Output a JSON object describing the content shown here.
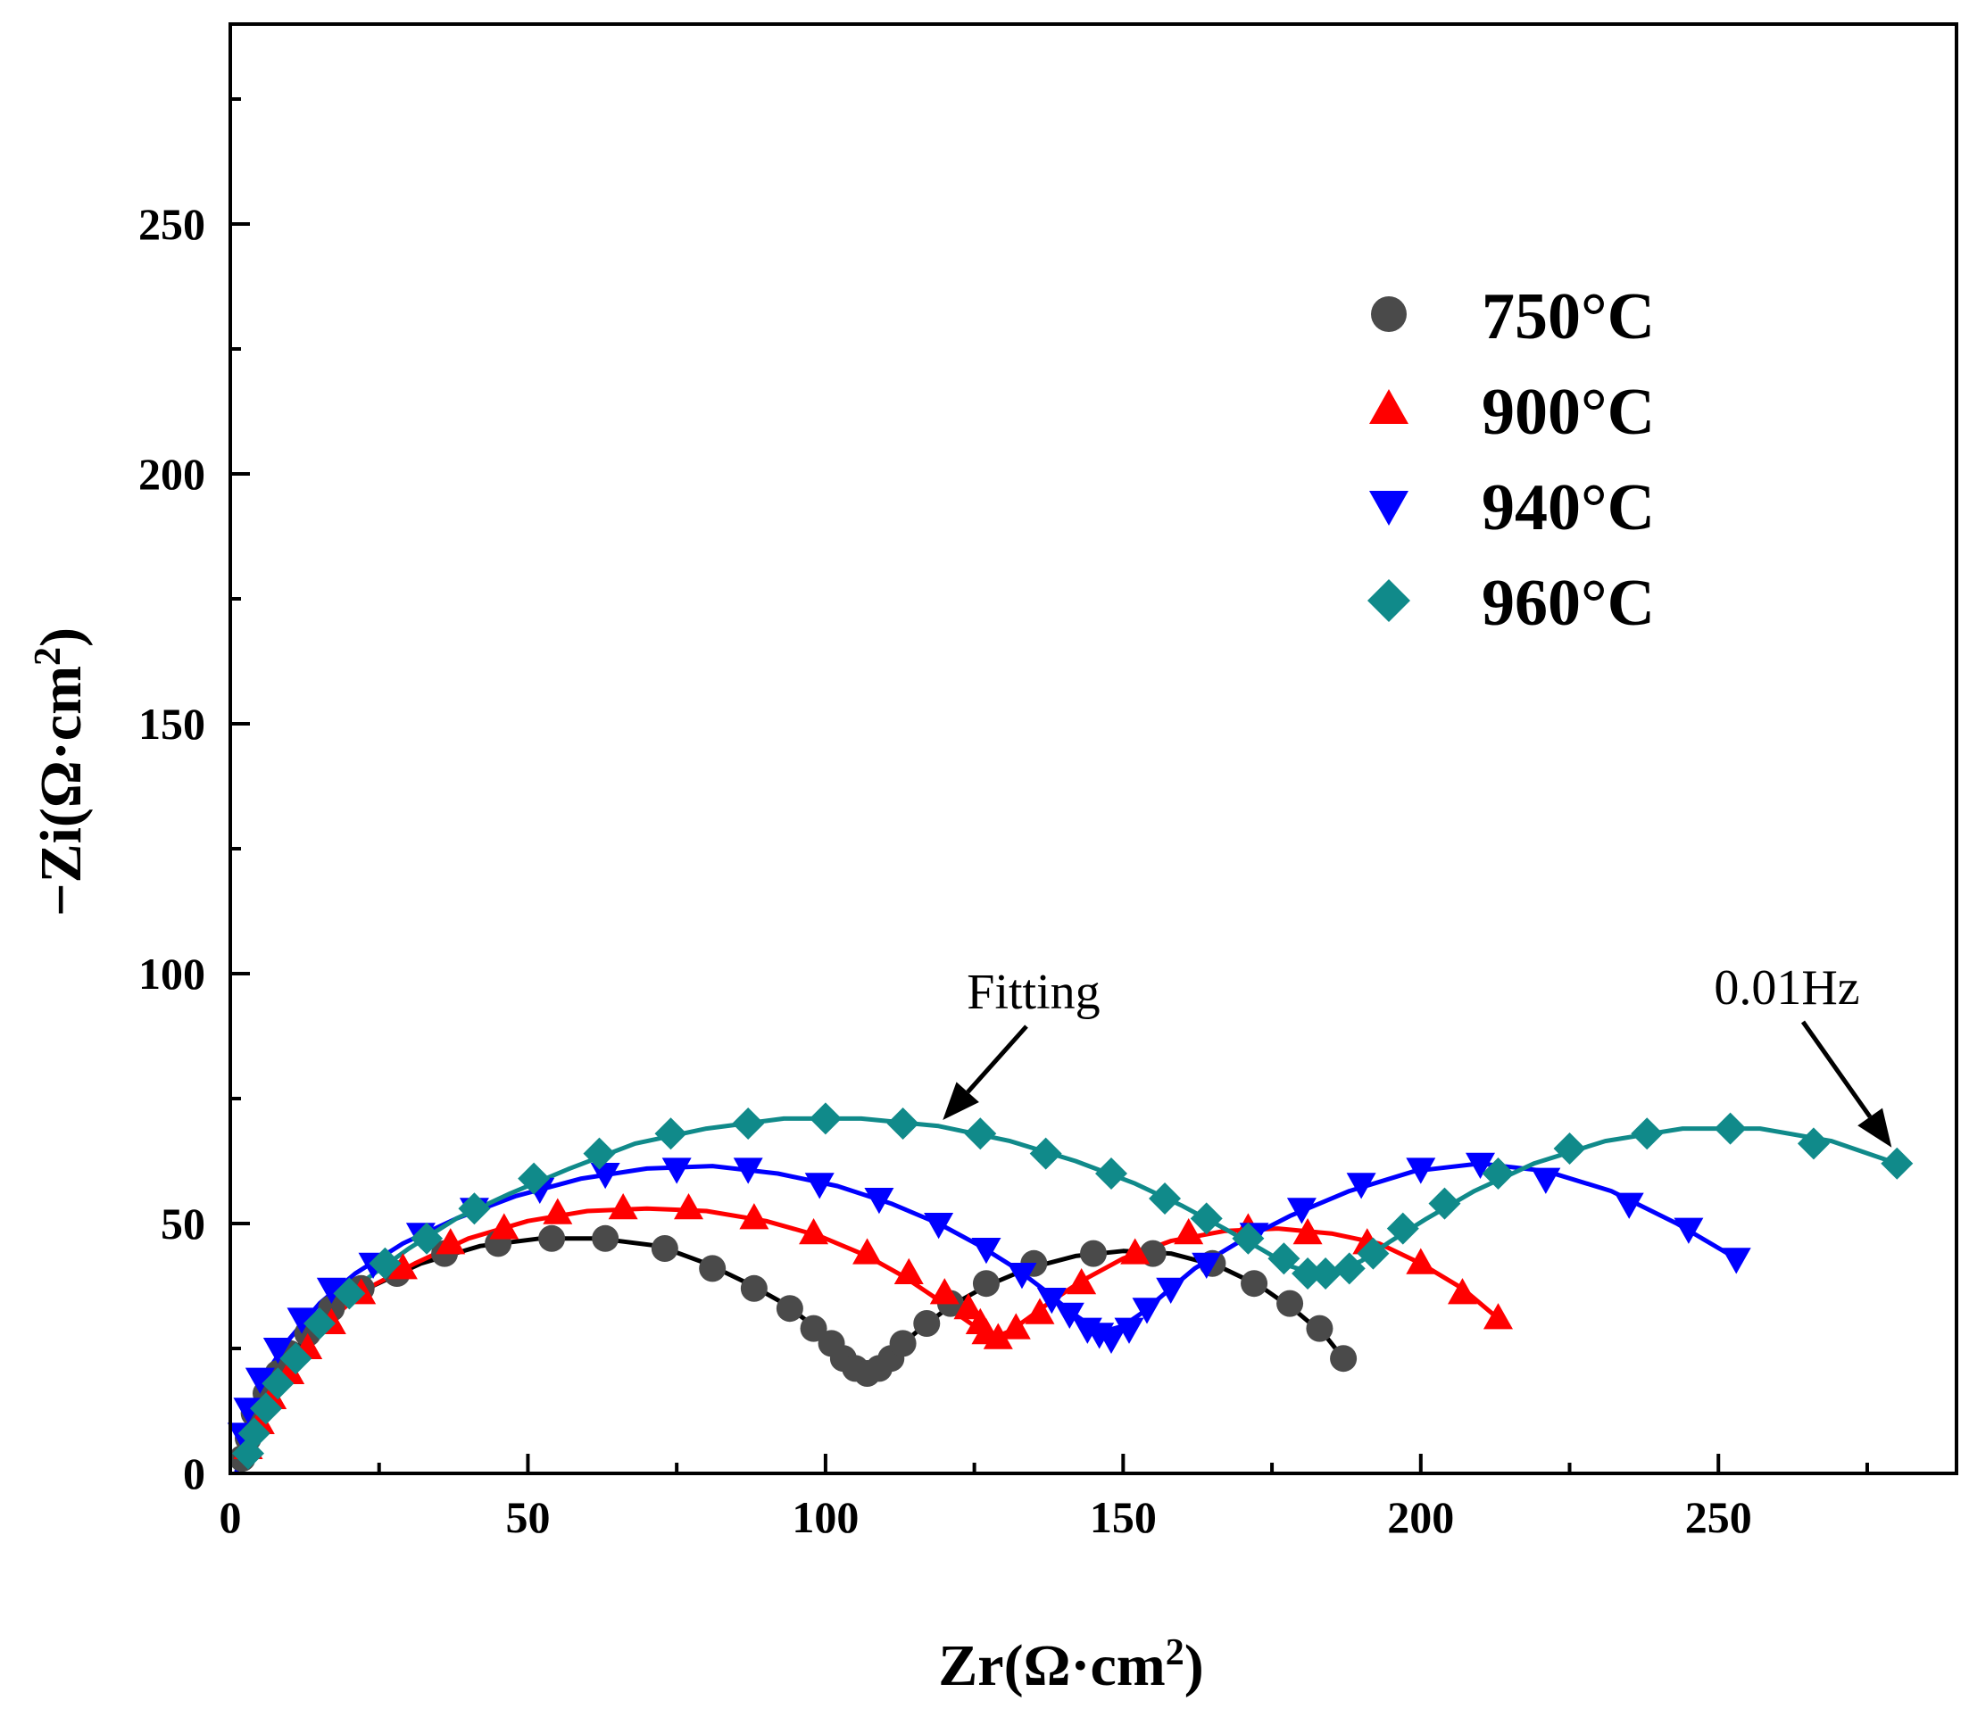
{
  "chart_data": {
    "type": "scatter",
    "xlabel": "Zr(Ω·cm",
    "xlabel_sup": "2",
    "xlabel_end": ")",
    "ylabel": "−Zi(Ω·cm",
    "ylabel_sup": "2",
    "ylabel_end": ")",
    "xlim": [
      0,
      290
    ],
    "ylim": [
      0,
      290
    ],
    "xticks": [
      0,
      50,
      100,
      150,
      200,
      250
    ],
    "yticks": [
      0,
      50,
      100,
      150,
      200,
      250
    ],
    "grid": false,
    "legend_position": "top-right",
    "fit_label": "Fitting",
    "fit_annotation_xy": [
      120,
      70
    ],
    "freq_label": "0.01Hz",
    "freq_annotation_xy": [
      280,
      62
    ],
    "series": [
      {
        "name": "750°C",
        "marker": "circle",
        "color": "#4a4a4a",
        "fit_color": "#000000",
        "points": [
          [
            2,
            3
          ],
          [
            3,
            7
          ],
          [
            4,
            12
          ],
          [
            6,
            16
          ],
          [
            8,
            20
          ],
          [
            10,
            24
          ],
          [
            13,
            28
          ],
          [
            17,
            33
          ],
          [
            22,
            37
          ],
          [
            28,
            40
          ],
          [
            36,
            44
          ],
          [
            45,
            46
          ],
          [
            54,
            47
          ],
          [
            63,
            47
          ],
          [
            73,
            45
          ],
          [
            81,
            41
          ],
          [
            88,
            37
          ],
          [
            94,
            33
          ],
          [
            98,
            29
          ],
          [
            101,
            26
          ],
          [
            103,
            23
          ],
          [
            105,
            21
          ],
          [
            107,
            20
          ],
          [
            109,
            21
          ],
          [
            111,
            23
          ],
          [
            113,
            26
          ],
          [
            117,
            30
          ],
          [
            121,
            34
          ],
          [
            127,
            38
          ],
          [
            135,
            42
          ],
          [
            145,
            44
          ],
          [
            155,
            44
          ],
          [
            165,
            42
          ],
          [
            172,
            38
          ],
          [
            178,
            34
          ],
          [
            183,
            29
          ],
          [
            187,
            23
          ]
        ],
        "fit": [
          [
            1,
            0
          ],
          [
            2,
            5
          ],
          [
            4,
            12
          ],
          [
            7,
            19
          ],
          [
            11,
            25
          ],
          [
            16,
            31
          ],
          [
            23,
            37
          ],
          [
            32,
            42
          ],
          [
            42,
            45.5
          ],
          [
            52,
            47
          ],
          [
            62,
            47
          ],
          [
            72,
            45.5
          ],
          [
            80,
            42
          ],
          [
            87,
            38
          ],
          [
            93,
            34
          ],
          [
            98,
            29.5
          ],
          [
            102,
            25
          ],
          [
            105,
            21.5
          ],
          [
            107,
            20
          ],
          [
            109,
            21.5
          ],
          [
            112,
            25
          ],
          [
            116,
            29
          ],
          [
            121,
            33.5
          ],
          [
            127,
            37.5
          ],
          [
            134,
            41
          ],
          [
            142,
            43.5
          ],
          [
            150,
            44.5
          ],
          [
            158,
            44
          ],
          [
            166,
            41.5
          ],
          [
            173,
            37.5
          ],
          [
            179,
            32.5
          ],
          [
            184,
            27.5
          ],
          [
            187,
            23
          ]
        ]
      },
      {
        "name": "900°C",
        "marker": "triangle-up",
        "color": "#ff0000",
        "fit_color": "#ff0000",
        "points": [
          [
            3,
            5
          ],
          [
            5,
            10
          ],
          [
            7,
            15
          ],
          [
            10,
            20
          ],
          [
            13,
            25
          ],
          [
            17,
            30
          ],
          [
            22,
            36
          ],
          [
            29,
            41
          ],
          [
            37,
            46
          ],
          [
            46,
            49
          ],
          [
            55,
            52
          ],
          [
            66,
            53
          ],
          [
            77,
            53
          ],
          [
            88,
            51
          ],
          [
            98,
            48
          ],
          [
            107,
            44
          ],
          [
            114,
            40
          ],
          [
            120,
            36
          ],
          [
            124,
            33
          ],
          [
            126,
            30
          ],
          [
            127,
            28
          ],
          [
            129,
            27
          ],
          [
            132,
            29
          ],
          [
            136,
            32
          ],
          [
            143,
            38
          ],
          [
            152,
            44
          ],
          [
            161,
            48
          ],
          [
            171,
            49
          ],
          [
            181,
            48
          ],
          [
            191,
            46
          ],
          [
            200,
            42
          ],
          [
            207,
            36
          ],
          [
            213,
            31
          ]
        ],
        "fit": [
          [
            1,
            0
          ],
          [
            2,
            5
          ],
          [
            4,
            11
          ],
          [
            7,
            17
          ],
          [
            11,
            24
          ],
          [
            16,
            30
          ],
          [
            23,
            37
          ],
          [
            31,
            42
          ],
          [
            40,
            47
          ],
          [
            50,
            50.5
          ],
          [
            60,
            52.5
          ],
          [
            70,
            53
          ],
          [
            80,
            52.5
          ],
          [
            90,
            50.5
          ],
          [
            99,
            47.5
          ],
          [
            107,
            43.5
          ],
          [
            113,
            39.5
          ],
          [
            118,
            35.5
          ],
          [
            122,
            32
          ],
          [
            125,
            29.5
          ],
          [
            127,
            28
          ],
          [
            129,
            27.5
          ],
          [
            131,
            28.5
          ],
          [
            134,
            31
          ],
          [
            138,
            34.5
          ],
          [
            143,
            38.5
          ],
          [
            150,
            43
          ],
          [
            158,
            46.5
          ],
          [
            167,
            48.5
          ],
          [
            176,
            49
          ],
          [
            185,
            48
          ],
          [
            193,
            46
          ],
          [
            200,
            42
          ],
          [
            207,
            37
          ],
          [
            213,
            31
          ]
        ]
      },
      {
        "name": "940°C",
        "marker": "triangle-down",
        "color": "#0000ff",
        "fit_color": "#0000ff",
        "points": [
          [
            2,
            8
          ],
          [
            3,
            13
          ],
          [
            5,
            19
          ],
          [
            8,
            25
          ],
          [
            12,
            31
          ],
          [
            17,
            37
          ],
          [
            24,
            42
          ],
          [
            32,
            48
          ],
          [
            41,
            53
          ],
          [
            52,
            57
          ],
          [
            63,
            60
          ],
          [
            75,
            61
          ],
          [
            87,
            61
          ],
          [
            99,
            58
          ],
          [
            109,
            55
          ],
          [
            119,
            50
          ],
          [
            127,
            45
          ],
          [
            133,
            40
          ],
          [
            138,
            35
          ],
          [
            141,
            32
          ],
          [
            144,
            29
          ],
          [
            146,
            28
          ],
          [
            148,
            27
          ],
          [
            151,
            29
          ],
          [
            154,
            33
          ],
          [
            158,
            37
          ],
          [
            164,
            42
          ],
          [
            172,
            48
          ],
          [
            180,
            53
          ],
          [
            190,
            58
          ],
          [
            200,
            61
          ],
          [
            210,
            62
          ],
          [
            221,
            59
          ],
          [
            235,
            54
          ],
          [
            245,
            49
          ],
          [
            253,
            43
          ]
        ],
        "fit": [
          [
            1,
            0
          ],
          [
            2,
            7
          ],
          [
            4,
            14
          ],
          [
            6,
            20
          ],
          [
            10,
            27
          ],
          [
            15,
            34
          ],
          [
            21,
            40
          ],
          [
            29,
            46
          ],
          [
            38,
            51
          ],
          [
            48,
            55.5
          ],
          [
            59,
            59
          ],
          [
            70,
            61
          ],
          [
            81,
            61.5
          ],
          [
            92,
            60
          ],
          [
            102,
            57.5
          ],
          [
            111,
            54
          ],
          [
            119,
            50
          ],
          [
            126,
            45.5
          ],
          [
            132,
            41
          ],
          [
            137,
            36.5
          ],
          [
            141,
            32.5
          ],
          [
            144,
            30
          ],
          [
            147,
            28.5
          ],
          [
            150,
            29.5
          ],
          [
            153,
            32
          ],
          [
            157,
            36
          ],
          [
            162,
            41
          ],
          [
            169,
            46
          ],
          [
            178,
            51.5
          ],
          [
            188,
            56.5
          ],
          [
            199,
            60.5
          ],
          [
            210,
            62
          ],
          [
            221,
            60.5
          ],
          [
            232,
            56.5
          ],
          [
            243,
            50
          ],
          [
            253,
            43
          ]
        ]
      },
      {
        "name": "960°C",
        "marker": "diamond",
        "color": "#108a8a",
        "fit_color": "#108a8a",
        "points": [
          [
            3,
            4
          ],
          [
            4,
            8
          ],
          [
            6,
            13
          ],
          [
            8,
            18
          ],
          [
            11,
            23
          ],
          [
            15,
            30
          ],
          [
            20,
            36
          ],
          [
            26,
            42
          ],
          [
            33,
            47
          ],
          [
            41,
            53
          ],
          [
            51,
            59
          ],
          [
            62,
            64
          ],
          [
            74,
            68
          ],
          [
            87,
            70
          ],
          [
            100,
            71
          ],
          [
            113,
            70
          ],
          [
            126,
            68
          ],
          [
            137,
            64
          ],
          [
            148,
            60
          ],
          [
            157,
            55
          ],
          [
            164,
            51
          ],
          [
            171,
            47
          ],
          [
            177,
            43
          ],
          [
            181,
            40
          ],
          [
            184,
            40
          ],
          [
            188,
            41
          ],
          [
            192,
            44
          ],
          [
            197,
            49
          ],
          [
            204,
            54
          ],
          [
            213,
            60
          ],
          [
            225,
            65
          ],
          [
            238,
            68
          ],
          [
            252,
            69
          ],
          [
            266,
            66
          ],
          [
            280,
            62
          ]
        ],
        "fit": [
          [
            2,
            0
          ],
          [
            3,
            5
          ],
          [
            5,
            11
          ],
          [
            8,
            18
          ],
          [
            12,
            25
          ],
          [
            17,
            32
          ],
          [
            23,
            39
          ],
          [
            30,
            45
          ],
          [
            38,
            51
          ],
          [
            47,
            56
          ],
          [
            57,
            61
          ],
          [
            68,
            66
          ],
          [
            80,
            69
          ],
          [
            93,
            71
          ],
          [
            106,
            71
          ],
          [
            119,
            69.5
          ],
          [
            131,
            66.5
          ],
          [
            142,
            62.5
          ],
          [
            152,
            58
          ],
          [
            160,
            53.5
          ],
          [
            167,
            49
          ],
          [
            173,
            45
          ],
          [
            178,
            41.5
          ],
          [
            182,
            40
          ],
          [
            186,
            40.5
          ],
          [
            190,
            42.5
          ],
          [
            195,
            46.5
          ],
          [
            201,
            51
          ],
          [
            209,
            56.5
          ],
          [
            219,
            62
          ],
          [
            231,
            66.5
          ],
          [
            244,
            69
          ],
          [
            257,
            69
          ],
          [
            269,
            66.5
          ],
          [
            280,
            62
          ]
        ]
      }
    ]
  }
}
